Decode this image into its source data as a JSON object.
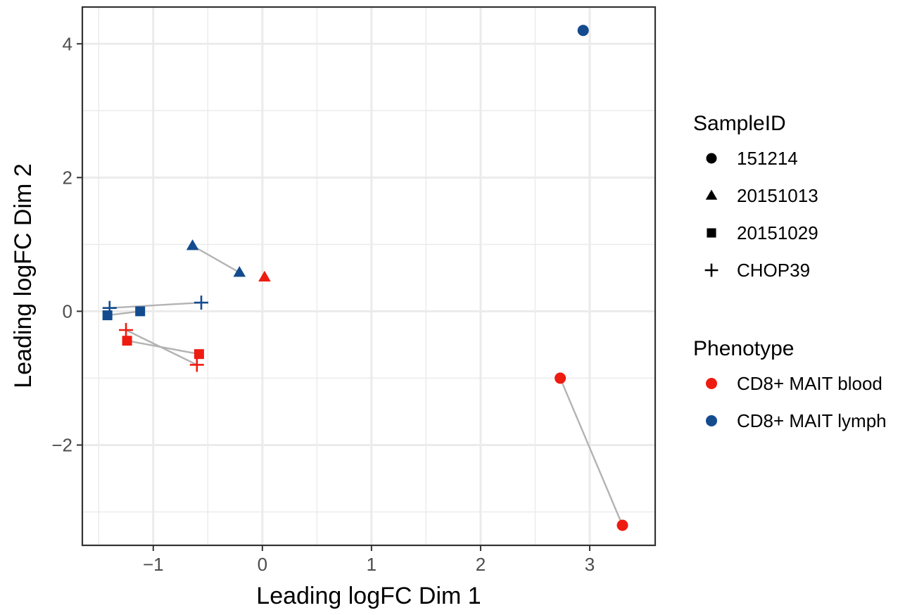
{
  "chart_data": {
    "type": "scatter",
    "title": "",
    "xlabel": "Leading logFC Dim 1",
    "ylabel": "Leading logFC Dim 2",
    "xlim": [
      -1.65,
      3.6
    ],
    "ylim": [
      -3.5,
      4.55
    ],
    "x_ticks": [
      -1,
      0,
      1,
      2,
      3
    ],
    "y_ticks": [
      -2,
      0,
      2,
      4
    ],
    "x_tick_labels": [
      "−1",
      "0",
      "1",
      "2",
      "3"
    ],
    "y_tick_labels": [
      "−2",
      "0",
      "2",
      "4"
    ],
    "grid": true,
    "legend_position": "right",
    "colors": {
      "CD8+ MAIT blood": "#ee1b10",
      "CD8+ MAIT lymph": "#134b8e",
      "connector": "#b3b3b3"
    },
    "legends": [
      {
        "title": "SampleID",
        "aesthetic": "shape",
        "entries": [
          {
            "label": "151214",
            "shape": "circle"
          },
          {
            "label": "20151013",
            "shape": "triangle"
          },
          {
            "label": "20151029",
            "shape": "square"
          },
          {
            "label": "CHOP39",
            "shape": "plus"
          }
        ]
      },
      {
        "title": "Phenotype",
        "aesthetic": "color",
        "entries": [
          {
            "label": "CD8+ MAIT blood",
            "color": "#ee1b10"
          },
          {
            "label": "CD8+ MAIT lymph",
            "color": "#134b8e"
          }
        ]
      }
    ],
    "points": [
      {
        "sample": "151214",
        "phenotype": "CD8+ MAIT lymph",
        "x": 2.94,
        "y": 4.2
      },
      {
        "sample": "151214",
        "phenotype": "CD8+ MAIT blood",
        "x": 2.73,
        "y": -1.0
      },
      {
        "sample": "151214",
        "phenotype": "CD8+ MAIT blood",
        "x": 3.3,
        "y": -3.2
      },
      {
        "sample": "20151013",
        "phenotype": "CD8+ MAIT lymph",
        "x": -0.64,
        "y": 0.98
      },
      {
        "sample": "20151013",
        "phenotype": "CD8+ MAIT lymph",
        "x": -0.21,
        "y": 0.58
      },
      {
        "sample": "20151013",
        "phenotype": "CD8+ MAIT blood",
        "x": 0.02,
        "y": 0.51
      },
      {
        "sample": "20151029",
        "phenotype": "CD8+ MAIT lymph",
        "x": -1.42,
        "y": -0.06
      },
      {
        "sample": "20151029",
        "phenotype": "CD8+ MAIT lymph",
        "x": -1.12,
        "y": 0.0
      },
      {
        "sample": "20151029",
        "phenotype": "CD8+ MAIT blood",
        "x": -1.24,
        "y": -0.44
      },
      {
        "sample": "20151029",
        "phenotype": "CD8+ MAIT blood",
        "x": -0.58,
        "y": -0.64
      },
      {
        "sample": "CHOP39",
        "phenotype": "CD8+ MAIT lymph",
        "x": -1.4,
        "y": 0.05
      },
      {
        "sample": "CHOP39",
        "phenotype": "CD8+ MAIT lymph",
        "x": -0.56,
        "y": 0.13
      },
      {
        "sample": "CHOP39",
        "phenotype": "CD8+ MAIT blood",
        "x": -1.25,
        "y": -0.28
      },
      {
        "sample": "CHOP39",
        "phenotype": "CD8+ MAIT blood",
        "x": -0.6,
        "y": -0.8
      }
    ],
    "segments": [
      {
        "from": [
          2.73,
          -1.0
        ],
        "to": [
          3.3,
          -3.2
        ]
      },
      {
        "from": [
          -0.64,
          0.98
        ],
        "to": [
          -0.21,
          0.58
        ]
      },
      {
        "from": [
          -1.42,
          -0.06
        ],
        "to": [
          -1.12,
          0.0
        ]
      },
      {
        "from": [
          -1.24,
          -0.44
        ],
        "to": [
          -0.58,
          -0.64
        ]
      },
      {
        "from": [
          -1.4,
          0.05
        ],
        "to": [
          -0.56,
          0.13
        ]
      },
      {
        "from": [
          -1.25,
          -0.28
        ],
        "to": [
          -0.6,
          -0.8
        ]
      }
    ]
  }
}
